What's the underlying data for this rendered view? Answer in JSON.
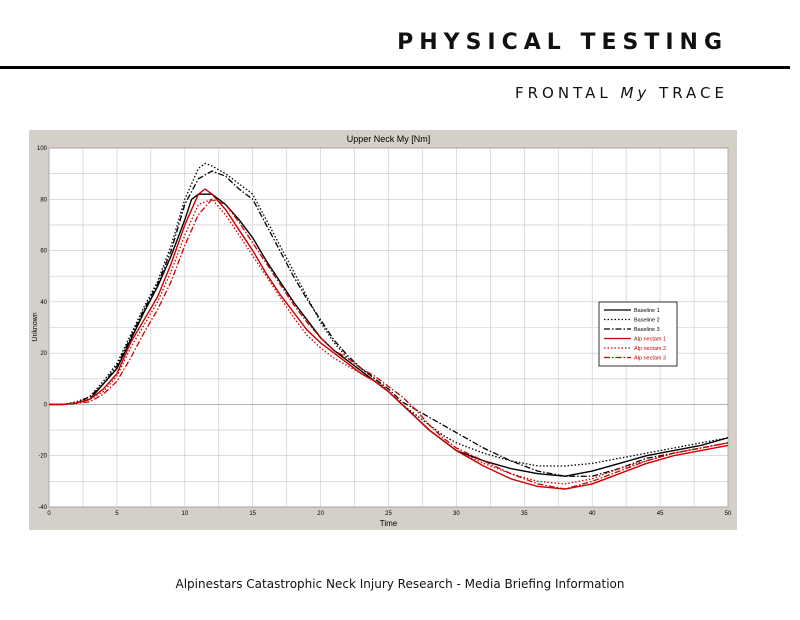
{
  "header": {
    "title": "PHYSICAL TESTING",
    "subtitle_pre": "FRONTAL ",
    "subtitle_italic": "My",
    "subtitle_post": " TRACE"
  },
  "footer": {
    "text": "Alpinestars Catastrophic Neck Injury Research - Media Briefing Information"
  },
  "chart_data": {
    "type": "line",
    "title": "Upper Neck My [Nm]",
    "xlabel": "Time",
    "ylabel": "Unknown",
    "xlim": [
      0,
      50
    ],
    "ylim": [
      -40,
      100
    ],
    "xticks": [
      0,
      5,
      10,
      15,
      20,
      25,
      30,
      35,
      40,
      45,
      50
    ],
    "yticks": [
      -40,
      -20,
      0,
      20,
      40,
      60,
      80,
      100
    ],
    "grid": true,
    "legend_position": "right",
    "series": [
      {
        "name": "Baseline 1",
        "color": "#000000",
        "style": "solid",
        "points": [
          [
            0,
            0
          ],
          [
            1,
            0
          ],
          [
            2,
            0.5
          ],
          [
            3,
            2
          ],
          [
            4,
            8
          ],
          [
            5,
            14
          ],
          [
            6,
            25
          ],
          [
            7,
            36
          ],
          [
            8,
            46
          ],
          [
            9,
            58
          ],
          [
            10,
            72
          ],
          [
            10.5,
            80
          ],
          [
            11,
            82
          ],
          [
            12,
            82
          ],
          [
            13,
            78
          ],
          [
            14,
            72
          ],
          [
            15,
            65
          ],
          [
            16,
            56
          ],
          [
            17,
            48
          ],
          [
            18,
            40
          ],
          [
            19,
            33
          ],
          [
            20,
            26
          ],
          [
            21,
            21
          ],
          [
            22,
            17
          ],
          [
            23,
            13
          ],
          [
            24,
            9
          ],
          [
            25,
            5
          ],
          [
            26,
            0
          ],
          [
            27,
            -5
          ],
          [
            28,
            -10
          ],
          [
            29,
            -14
          ],
          [
            30,
            -18
          ],
          [
            32,
            -22
          ],
          [
            34,
            -25
          ],
          [
            36,
            -27
          ],
          [
            38,
            -28
          ],
          [
            40,
            -26
          ],
          [
            42,
            -23
          ],
          [
            44,
            -20
          ],
          [
            46,
            -18
          ],
          [
            48,
            -16
          ],
          [
            50,
            -13
          ]
        ]
      },
      {
        "name": "Baseline 2",
        "color": "#000000",
        "style": "dotted",
        "points": [
          [
            0,
            0
          ],
          [
            1,
            0
          ],
          [
            2,
            1
          ],
          [
            3,
            3
          ],
          [
            4,
            9
          ],
          [
            5,
            16
          ],
          [
            6,
            27
          ],
          [
            7,
            38
          ],
          [
            8,
            48
          ],
          [
            9,
            62
          ],
          [
            10,
            80
          ],
          [
            11,
            92
          ],
          [
            11.5,
            94
          ],
          [
            12,
            93
          ],
          [
            13,
            90
          ],
          [
            14,
            86
          ],
          [
            15,
            82
          ],
          [
            16,
            72
          ],
          [
            17,
            62
          ],
          [
            18,
            52
          ],
          [
            19,
            42
          ],
          [
            20,
            32
          ],
          [
            21,
            24
          ],
          [
            22,
            18
          ],
          [
            23,
            14
          ],
          [
            24,
            10
          ],
          [
            25,
            5
          ],
          [
            26,
            0
          ],
          [
            27,
            -4
          ],
          [
            28,
            -8
          ],
          [
            29,
            -12
          ],
          [
            30,
            -15
          ],
          [
            32,
            -19
          ],
          [
            34,
            -22
          ],
          [
            36,
            -24
          ],
          [
            38,
            -24
          ],
          [
            40,
            -23
          ],
          [
            42,
            -21
          ],
          [
            44,
            -19
          ],
          [
            46,
            -17
          ],
          [
            48,
            -15
          ],
          [
            50,
            -13
          ]
        ]
      },
      {
        "name": "Baseline 3",
        "color": "#000000",
        "style": "dashdot",
        "points": [
          [
            0,
            0
          ],
          [
            1,
            0
          ],
          [
            2,
            0.5
          ],
          [
            3,
            3
          ],
          [
            4,
            8
          ],
          [
            5,
            15
          ],
          [
            6,
            26
          ],
          [
            7,
            37
          ],
          [
            8,
            47
          ],
          [
            9,
            60
          ],
          [
            10,
            78
          ],
          [
            11,
            88
          ],
          [
            12,
            91
          ],
          [
            13,
            89
          ],
          [
            14,
            84
          ],
          [
            15,
            80
          ],
          [
            16,
            70
          ],
          [
            17,
            60
          ],
          [
            18,
            50
          ],
          [
            19,
            41
          ],
          [
            20,
            33
          ],
          [
            21,
            25
          ],
          [
            22,
            19
          ],
          [
            23,
            14
          ],
          [
            24,
            10
          ],
          [
            25,
            6
          ],
          [
            26,
            1
          ],
          [
            27,
            -2
          ],
          [
            28,
            -5
          ],
          [
            29,
            -8
          ],
          [
            30,
            -11
          ],
          [
            32,
            -17
          ],
          [
            34,
            -22
          ],
          [
            36,
            -26
          ],
          [
            38,
            -28
          ],
          [
            40,
            -28
          ],
          [
            42,
            -25
          ],
          [
            44,
            -21
          ],
          [
            46,
            -19
          ],
          [
            48,
            -17
          ],
          [
            50,
            -15
          ]
        ]
      },
      {
        "name": "Alp nectam 1",
        "color": "#cc0000",
        "style": "solid",
        "points": [
          [
            0,
            0
          ],
          [
            1,
            0
          ],
          [
            2,
            0.5
          ],
          [
            3,
            2
          ],
          [
            4,
            6
          ],
          [
            5,
            12
          ],
          [
            6,
            24
          ],
          [
            7,
            33
          ],
          [
            8,
            42
          ],
          [
            9,
            55
          ],
          [
            10,
            70
          ],
          [
            11,
            82
          ],
          [
            11.5,
            84
          ],
          [
            12,
            82
          ],
          [
            13,
            76
          ],
          [
            14,
            68
          ],
          [
            15,
            60
          ],
          [
            16,
            51
          ],
          [
            17,
            43
          ],
          [
            18,
            36
          ],
          [
            19,
            29
          ],
          [
            20,
            24
          ],
          [
            21,
            20
          ],
          [
            22,
            16
          ],
          [
            23,
            12
          ],
          [
            24,
            9
          ],
          [
            25,
            5
          ],
          [
            26,
            0
          ],
          [
            27,
            -5
          ],
          [
            28,
            -10
          ],
          [
            29,
            -14
          ],
          [
            30,
            -18
          ],
          [
            32,
            -24
          ],
          [
            34,
            -29
          ],
          [
            36,
            -32
          ],
          [
            38,
            -33
          ],
          [
            40,
            -31
          ],
          [
            42,
            -27
          ],
          [
            44,
            -23
          ],
          [
            46,
            -20
          ],
          [
            48,
            -18
          ],
          [
            50,
            -16
          ]
        ]
      },
      {
        "name": "Alp nectam 2",
        "color": "#cc0000",
        "style": "dotted",
        "points": [
          [
            0,
            0
          ],
          [
            1,
            0
          ],
          [
            2,
            0.5
          ],
          [
            3,
            2
          ],
          [
            4,
            5
          ],
          [
            5,
            11
          ],
          [
            6,
            22
          ],
          [
            7,
            31
          ],
          [
            8,
            40
          ],
          [
            9,
            52
          ],
          [
            10,
            66
          ],
          [
            11,
            78
          ],
          [
            12,
            80
          ],
          [
            13,
            74
          ],
          [
            14,
            66
          ],
          [
            15,
            58
          ],
          [
            16,
            50
          ],
          [
            17,
            42
          ],
          [
            18,
            34
          ],
          [
            19,
            27
          ],
          [
            20,
            22
          ],
          [
            21,
            18
          ],
          [
            22,
            15
          ],
          [
            23,
            12
          ],
          [
            24,
            9
          ],
          [
            25,
            5
          ],
          [
            26,
            0
          ],
          [
            27,
            -5
          ],
          [
            28,
            -10
          ],
          [
            29,
            -14
          ],
          [
            30,
            -18
          ],
          [
            32,
            -23
          ],
          [
            34,
            -27
          ],
          [
            36,
            -30
          ],
          [
            38,
            -31
          ],
          [
            40,
            -29
          ],
          [
            42,
            -25
          ],
          [
            44,
            -22
          ],
          [
            46,
            -19
          ],
          [
            48,
            -17
          ],
          [
            50,
            -15
          ]
        ]
      },
      {
        "name": "Alp nectam 3",
        "color": "#cc0000",
        "style": "dashdot",
        "points": [
          [
            0,
            0
          ],
          [
            1,
            0
          ],
          [
            2,
            0.5
          ],
          [
            3,
            1
          ],
          [
            4,
            4
          ],
          [
            5,
            9
          ],
          [
            6,
            18
          ],
          [
            7,
            28
          ],
          [
            8,
            37
          ],
          [
            9,
            48
          ],
          [
            10,
            62
          ],
          [
            11,
            74
          ],
          [
            12,
            80
          ],
          [
            13,
            78
          ],
          [
            14,
            71
          ],
          [
            15,
            63
          ],
          [
            16,
            55
          ],
          [
            17,
            47
          ],
          [
            18,
            39
          ],
          [
            19,
            32
          ],
          [
            20,
            26
          ],
          [
            21,
            21
          ],
          [
            22,
            18
          ],
          [
            23,
            14
          ],
          [
            24,
            11
          ],
          [
            25,
            7
          ],
          [
            26,
            3
          ],
          [
            27,
            -2
          ],
          [
            28,
            -8
          ],
          [
            29,
            -13
          ],
          [
            30,
            -17
          ],
          [
            32,
            -22
          ],
          [
            34,
            -27
          ],
          [
            36,
            -31
          ],
          [
            38,
            -33
          ],
          [
            40,
            -30
          ],
          [
            42,
            -26
          ],
          [
            44,
            -22
          ],
          [
            46,
            -19
          ],
          [
            48,
            -17
          ],
          [
            50,
            -15
          ]
        ]
      }
    ]
  }
}
